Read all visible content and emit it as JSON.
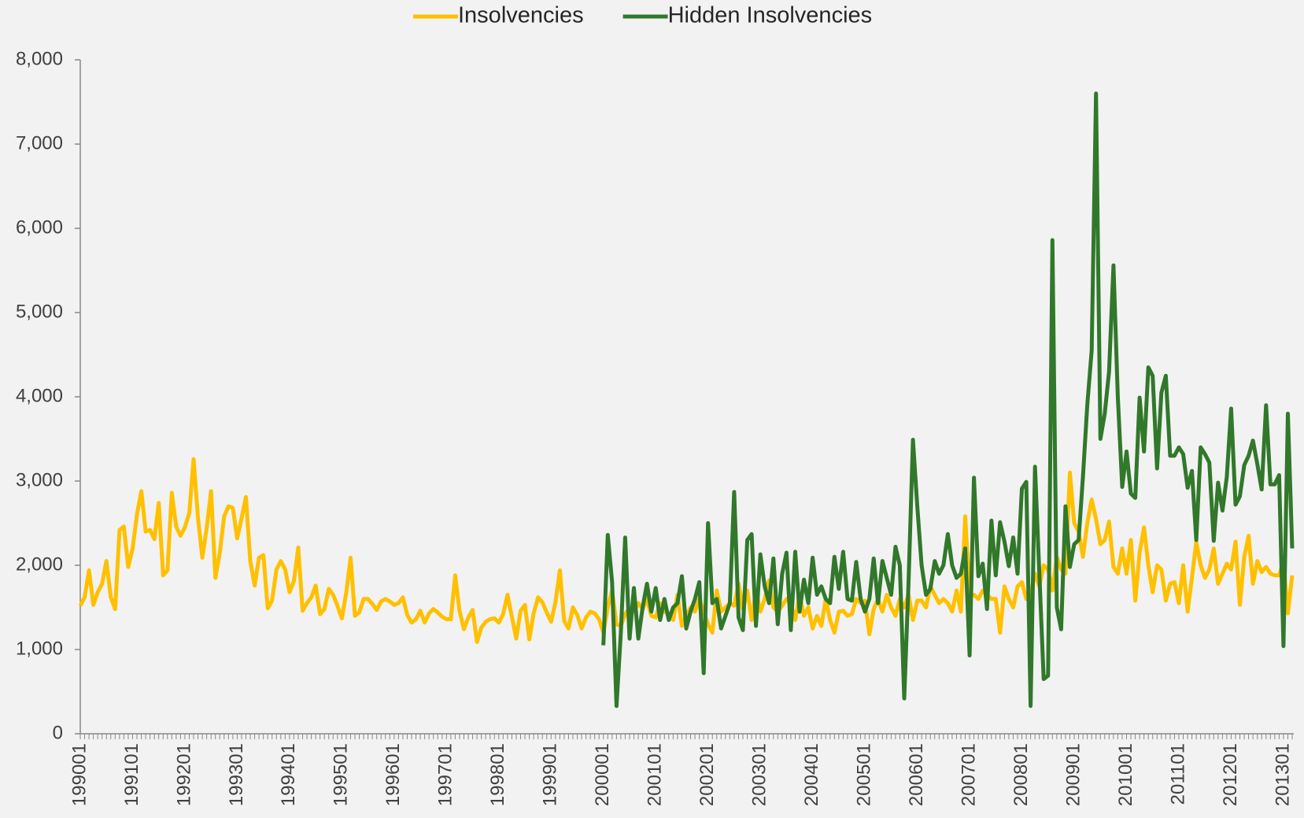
{
  "chart_data": {
    "type": "line",
    "legend": "top",
    "categories": [
      "199001",
      null,
      null,
      null,
      null,
      null,
      null,
      null,
      null,
      null,
      null,
      null,
      "199101",
      null,
      null,
      null,
      null,
      null,
      null,
      null,
      null,
      null,
      null,
      null,
      "199201",
      null,
      null,
      null,
      null,
      null,
      null,
      null,
      null,
      null,
      null,
      null,
      "199301",
      null,
      null,
      null,
      null,
      null,
      null,
      null,
      null,
      null,
      null,
      null,
      "199401",
      null,
      null,
      null,
      null,
      null,
      null,
      null,
      null,
      null,
      null,
      null,
      "199501",
      null,
      null,
      null,
      null,
      null,
      null,
      null,
      null,
      null,
      null,
      null,
      "199601",
      null,
      null,
      null,
      null,
      null,
      null,
      null,
      null,
      null,
      null,
      null,
      "199701",
      null,
      null,
      null,
      null,
      null,
      null,
      null,
      null,
      null,
      null,
      null,
      "199801",
      null,
      null,
      null,
      null,
      null,
      null,
      null,
      null,
      null,
      null,
      null,
      "199901",
      null,
      null,
      null,
      null,
      null,
      null,
      null,
      null,
      null,
      null,
      null,
      "200001",
      null,
      null,
      null,
      null,
      null,
      null,
      null,
      null,
      null,
      null,
      null,
      "200101",
      null,
      null,
      null,
      null,
      null,
      null,
      null,
      null,
      null,
      null,
      null,
      "200201",
      null,
      null,
      null,
      null,
      null,
      null,
      null,
      null,
      null,
      null,
      null,
      "200301",
      null,
      null,
      null,
      null,
      null,
      null,
      null,
      null,
      null,
      null,
      null,
      "200401",
      null,
      null,
      null,
      null,
      null,
      null,
      null,
      null,
      null,
      null,
      null,
      "200501",
      null,
      null,
      null,
      null,
      null,
      null,
      null,
      null,
      null,
      null,
      null,
      "200601",
      null,
      null,
      null,
      null,
      null,
      null,
      null,
      null,
      null,
      null,
      null,
      "200701",
      null,
      null,
      null,
      null,
      null,
      null,
      null,
      null,
      null,
      null,
      null,
      "200801",
      null,
      null,
      null,
      null,
      null,
      null,
      null,
      null,
      null,
      null,
      null,
      "200901",
      null,
      null,
      null,
      null,
      null,
      null,
      null,
      null,
      null,
      null,
      null,
      "201001",
      null,
      null,
      null,
      null,
      null,
      null,
      null,
      null,
      null,
      null,
      null,
      "201101",
      null,
      null,
      null,
      null,
      null,
      null,
      null,
      null,
      null,
      null,
      null,
      "201201",
      null,
      null,
      null,
      null,
      null,
      null,
      null,
      null,
      null,
      null,
      null,
      "201301",
      null,
      null
    ],
    "series": [
      {
        "name": "Insolvencies",
        "color": "#ffc000",
        "values": [
          1520,
          1620,
          1940,
          1530,
          1680,
          1780,
          2050,
          1620,
          1480,
          2420,
          2460,
          1980,
          2200,
          2600,
          2880,
          2400,
          2420,
          2310,
          2740,
          1880,
          1940,
          2860,
          2460,
          2350,
          2450,
          2620,
          3260,
          2560,
          2090,
          2440,
          2880,
          1850,
          2150,
          2580,
          2700,
          2680,
          2320,
          2560,
          2810,
          2050,
          1760,
          2090,
          2120,
          1490,
          1580,
          1950,
          2050,
          1950,
          1680,
          1810,
          2210,
          1460,
          1550,
          1620,
          1760,
          1420,
          1480,
          1720,
          1650,
          1520,
          1370,
          1670,
          2090,
          1400,
          1440,
          1600,
          1600,
          1540,
          1470,
          1570,
          1600,
          1570,
          1530,
          1550,
          1620,
          1410,
          1320,
          1360,
          1460,
          1320,
          1430,
          1480,
          1440,
          1390,
          1360,
          1360,
          1880,
          1460,
          1240,
          1380,
          1470,
          1090,
          1260,
          1330,
          1360,
          1370,
          1320,
          1420,
          1650,
          1390,
          1130,
          1460,
          1530,
          1120,
          1430,
          1620,
          1560,
          1440,
          1330,
          1560,
          1940,
          1340,
          1250,
          1500,
          1410,
          1250,
          1380,
          1450,
          1430,
          1360,
          1200,
          1500,
          1700,
          1300,
          1280,
          1420,
          1500,
          1450,
          1550,
          1480,
          1600,
          1400,
          1380,
          1550,
          1450,
          1420,
          1350,
          1650,
          1280,
          1400,
          1500,
          1450,
          1600,
          1450,
          1300,
          1200,
          1700,
          1450,
          1500,
          1550,
          1520,
          1780,
          1480,
          1700,
          1350,
          1700,
          1450,
          1600,
          1820,
          1500,
          1450,
          1520,
          1600,
          1550,
          1350,
          1650,
          1400,
          1500,
          1250,
          1400,
          1280,
          1600,
          1350,
          1200,
          1450,
          1460,
          1400,
          1420,
          1600,
          1550,
          1580,
          1180,
          1480,
          1600,
          1450,
          1650,
          1500,
          1400,
          1600,
          1500,
          1650,
          1350,
          1580,
          1580,
          1500,
          1750,
          1650,
          1550,
          1600,
          1550,
          1450,
          1700,
          1450,
          2580,
          1650,
          1650,
          1600,
          1700,
          1650,
          1600,
          1600,
          1200,
          1750,
          1600,
          1500,
          1750,
          1800,
          1600,
          1650,
          1900,
          1750,
          2000,
          1950,
          1700,
          2100,
          1950,
          1900,
          3100,
          2500,
          2400,
          2100,
          2500,
          2780,
          2550,
          2250,
          2300,
          2520,
          1980,
          1900,
          2200,
          1900,
          2300,
          1580,
          2150,
          2450,
          2000,
          1680,
          2000,
          1950,
          1580,
          1780,
          1800,
          1550,
          2000,
          1450,
          1850,
          2280,
          2000,
          1850,
          1950,
          2200,
          1780,
          1900,
          2020,
          1950,
          2280,
          1530,
          2100,
          2350,
          1780,
          2050,
          1920,
          1980,
          1900,
          1880,
          1880,
          2050,
          1430,
          1880
        ]
      },
      {
        "name": "Hidden Insolvencies",
        "color": "#31782b",
        "values": [
          null,
          null,
          null,
          null,
          null,
          null,
          null,
          null,
          null,
          null,
          null,
          null,
          null,
          null,
          null,
          null,
          null,
          null,
          null,
          null,
          null,
          null,
          null,
          null,
          null,
          null,
          null,
          null,
          null,
          null,
          null,
          null,
          null,
          null,
          null,
          null,
          null,
          null,
          null,
          null,
          null,
          null,
          null,
          null,
          null,
          null,
          null,
          null,
          null,
          null,
          null,
          null,
          null,
          null,
          null,
          null,
          null,
          null,
          null,
          null,
          null,
          null,
          null,
          null,
          null,
          null,
          null,
          null,
          null,
          null,
          null,
          null,
          null,
          null,
          null,
          null,
          null,
          null,
          null,
          null,
          null,
          null,
          null,
          null,
          null,
          null,
          null,
          null,
          null,
          null,
          null,
          null,
          null,
          null,
          null,
          null,
          null,
          null,
          null,
          null,
          null,
          null,
          null,
          null,
          null,
          null,
          null,
          null,
          null,
          null,
          null,
          null,
          null,
          null,
          null,
          null,
          null,
          null,
          null,
          null,
          1050,
          2360,
          1800,
          330,
          1200,
          2330,
          1130,
          1730,
          1130,
          1500,
          1780,
          1450,
          1730,
          1350,
          1600,
          1350,
          1500,
          1550,
          1870,
          1250,
          1450,
          1600,
          1800,
          720,
          2500,
          1550,
          1600,
          1250,
          1400,
          1550,
          2870,
          1380,
          1230,
          2300,
          2370,
          1280,
          2130,
          1750,
          1550,
          2080,
          1300,
          1900,
          2150,
          1230,
          2160,
          1450,
          1830,
          1550,
          2090,
          1650,
          1750,
          1600,
          1550,
          2100,
          1720,
          2160,
          1600,
          1580,
          2040,
          1600,
          1450,
          1600,
          2080,
          1550,
          2050,
          1850,
          1650,
          2220,
          2000,
          420,
          1800,
          3490,
          2700,
          2000,
          1650,
          1720,
          2050,
          1900,
          2000,
          2370,
          2000,
          1850,
          1900,
          2200,
          930,
          3040,
          1870,
          2020,
          1480,
          2530,
          1880,
          2510,
          2280,
          1990,
          2330,
          1900,
          2910,
          2990,
          330,
          3170,
          1900,
          650,
          690,
          5860,
          1500,
          1240,
          2700,
          1980,
          2250,
          2300,
          3050,
          3900,
          4550,
          7600,
          3500,
          3800,
          4300,
          5560,
          4000,
          2930,
          3350,
          2850,
          2800,
          3990,
          3350,
          4350,
          4250,
          3150,
          4050,
          4250,
          3300,
          3300,
          3400,
          3320,
          2920,
          3120,
          2300,
          3400,
          3320,
          3220,
          2290,
          2980,
          2650,
          3050,
          3860,
          2720,
          2820,
          3190,
          3300,
          3480,
          3200,
          2900,
          3900,
          2960,
          2960,
          3070,
          1040,
          3800,
          2200
        ]
      }
    ],
    "ylim": [
      0,
      8000
    ],
    "yticks": [
      0,
      {
        "value": 1000,
        "label": "1,000"
      },
      {
        "value": 2000,
        "label": "2,000"
      },
      {
        "value": 3000,
        "label": "3,000"
      },
      {
        "value": 4000,
        "label": "4,000"
      },
      {
        "value": 5000,
        "label": "5,000"
      },
      {
        "value": 6000,
        "label": "6,000"
      },
      {
        "value": 7000,
        "label": "7,000"
      },
      {
        "value": 8000,
        "label": "8,000"
      }
    ]
  }
}
